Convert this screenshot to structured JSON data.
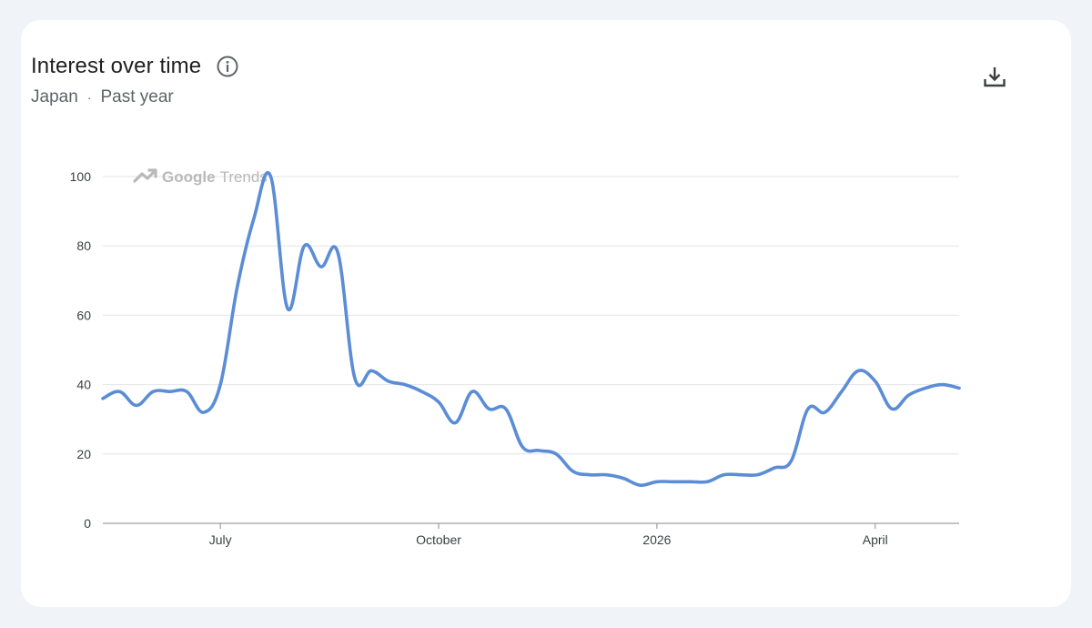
{
  "card": {
    "title": "Interest over time",
    "region": "Japan",
    "separator": "·",
    "period": "Past year",
    "info_icon": "info-icon",
    "download_icon": "download-icon"
  },
  "watermark": {
    "brand": "Google",
    "product": "Trends",
    "icon": "trending-up-icon"
  },
  "colors": {
    "line": "#5b8dd6",
    "grid": "#e3e5e8",
    "axis": "#9aa0a6"
  },
  "chart_data": {
    "type": "line",
    "title": "Interest over time",
    "xlabel": "",
    "ylabel": "",
    "ylim": [
      0,
      100
    ],
    "y_ticks": [
      0,
      20,
      40,
      60,
      80,
      100
    ],
    "grid": true,
    "x_ticks": [
      {
        "label": "July",
        "index": 7
      },
      {
        "label": "October",
        "index": 20
      },
      {
        "label": "2026",
        "index": 33
      },
      {
        "label": "April",
        "index": 46
      }
    ],
    "series": [
      {
        "name": "",
        "values": [
          36,
          38,
          34,
          38,
          38,
          38,
          32,
          40,
          68,
          88,
          100,
          62,
          80,
          74,
          78,
          42,
          44,
          41,
          40,
          38,
          35,
          29,
          38,
          33,
          33,
          22,
          21,
          20,
          15,
          14,
          14,
          13,
          11,
          12,
          12,
          12,
          12,
          14,
          14,
          14,
          16,
          18,
          33,
          32,
          38,
          44,
          41,
          33,
          37,
          39,
          40,
          39
        ]
      }
    ]
  }
}
